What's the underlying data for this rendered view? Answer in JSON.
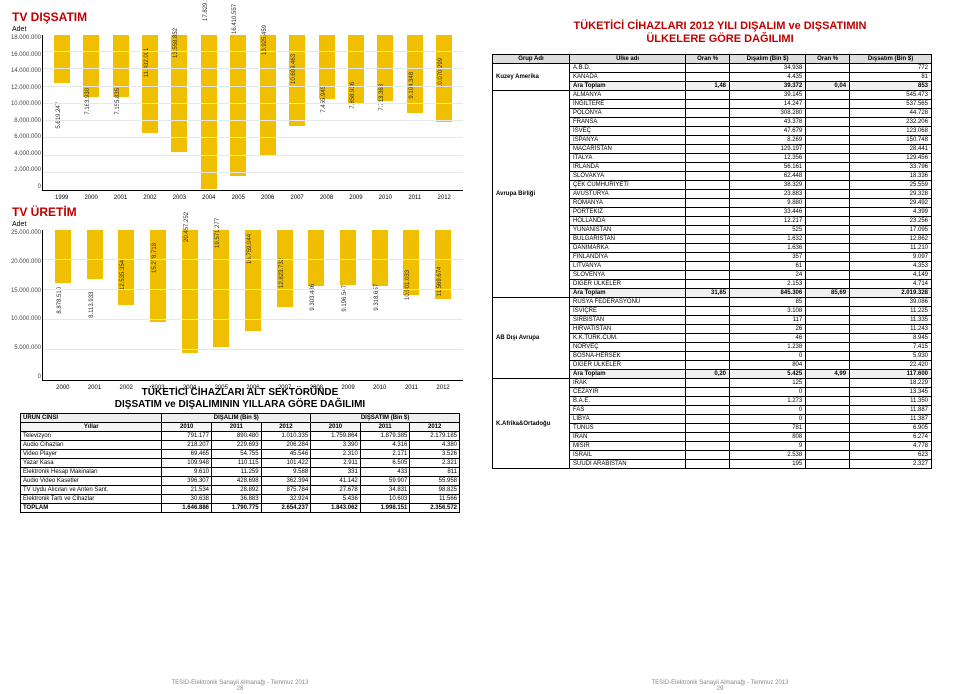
{
  "left": {
    "h1": "TV DIŞSATIM",
    "sub": "Adet",
    "chart1": {
      "type": "bar",
      "ymax": 18000000,
      "ytick": 2000000,
      "bar_color": "#f0c000",
      "grid_color": "#e8e8e8",
      "labels": [
        "1999",
        "2000",
        "2001",
        "2002",
        "2003",
        "2004",
        "2005",
        "2006",
        "2007",
        "2008",
        "2009",
        "2010",
        "2011",
        "2012"
      ],
      "values": [
        5619247,
        7163930,
        7155835,
        11432001,
        13558852,
        17829187,
        16410557,
        13925459,
        10609463,
        7455945,
        7858936,
        7713368,
        9104348,
        10070299
      ],
      "captions": [
        "5.619.247",
        "7.163.930",
        "7.155.835",
        "11.432.001",
        "13.558.852",
        "17.829.187",
        "16.410.557",
        "13.925.459",
        "10.609.463",
        "7.455.945",
        "7.858.936",
        "7.713.368",
        "9.104.348",
        "10.070.299"
      ]
    },
    "h2": "TV ÜRETİM",
    "chart2": {
      "type": "bar",
      "ymax": 25000000,
      "ytick": 5000000,
      "bar_color": "#f0c000",
      "grid_color": "#e8e8e8",
      "labels": [
        "2000",
        "2001",
        "2002",
        "2003",
        "2004",
        "2005",
        "2006",
        "2007",
        "2008",
        "2009",
        "2010",
        "2011",
        "2012"
      ],
      "values": [
        8878510,
        8113933,
        12535354,
        15278718,
        20457252,
        19571277,
        16759044,
        12823732,
        9303486,
        9196547,
        9318657,
        10901033,
        11569674
      ],
      "captions": [
        "8.878.510",
        "8.113.933",
        "12.535.354",
        "15.278.718",
        "20.457.252",
        "19.571.277",
        "16.759.044",
        "12.823.732",
        "9.303.486",
        "9.196.547",
        "9.318.657",
        "10.901.033",
        "11.569.674"
      ]
    },
    "tableTitle": "TÜKETİCİ CİHAZLARI ALT SEKTÖRÜNDE\nDIŞSATIM ve DIŞALIMININ YILLARA GÖRE DAĞILIMI",
    "table": {
      "head1": [
        "ÜRÜN CİNSİ",
        "DIŞALIM (Bin $)",
        "",
        "",
        "DIŞSATIM (Bin $)",
        "",
        ""
      ],
      "head2": [
        "Yıllar",
        "2010",
        "2011",
        "2012",
        "2010",
        "2011",
        "2012"
      ],
      "rows": [
        [
          "Televizyon",
          "791.177",
          "890.480",
          "1.010.335",
          "1.759.864",
          "1.879.385",
          "2.179.185"
        ],
        [
          "Audio Cihazları",
          "218.207",
          "229.693",
          "206.284",
          "3.390",
          "4.316",
          "4.380"
        ],
        [
          "Video Player",
          "69.465",
          "54.755",
          "45.546",
          "2.310",
          "2.171",
          "3.526"
        ],
        [
          "Yazar Kasa",
          "109.948",
          "110.115",
          "101.422",
          "2.911",
          "6.505",
          "2.321"
        ],
        [
          "Elektronik Hesap Makinaları",
          "9.610",
          "11.259",
          "9.588",
          "331",
          "433",
          "811"
        ],
        [
          "Audio Video Kasetler",
          "396.307",
          "428.698",
          "362.394",
          "41.142",
          "59.907",
          "55.958"
        ],
        [
          "TV Uydu Alıcıları ve Anten Sant.",
          "21.534",
          "28.892",
          "875.784",
          "27.678",
          "34.831",
          "98.825"
        ],
        [
          "Elektronik Tartı ve Cihazlar",
          "30.638",
          "36.883",
          "32.924",
          "5.436",
          "10.603",
          "11.566"
        ],
        [
          "TOPLAM",
          "1.646.886",
          "1.790.775",
          "2.654.237",
          "1.843.062",
          "1.998.151",
          "2.356.572"
        ]
      ]
    },
    "footer": "TESİD-Elektronik Sanayii Almanağı - Temmuz 2013",
    "pageNo": "28"
  },
  "right": {
    "title": "TÜKETİCİ CİHAZLARI 2012 YILI DIŞALIM ve DIŞSATIMIN\nÜLKELERE GÖRE DAĞILIMI",
    "columns": [
      "Grup Adı",
      "Ülke adı",
      "Oran %",
      "Dışalım (Bin $)",
      "Oran %",
      "Dışsatım (Bin $)"
    ],
    "groups": [
      {
        "name": "Kuzey Amerika",
        "rows": [
          [
            "A.B.D.",
            "",
            "34.938",
            "",
            "772"
          ],
          [
            "KANADA",
            "",
            "4.435",
            "",
            "81"
          ]
        ],
        "subtotal": [
          "Ara Toplam",
          "1,48",
          "39.372",
          "0,04",
          "853"
        ]
      },
      {
        "name": "Avrupa Birliği",
        "rows": [
          [
            "ALMANYA",
            "",
            "39.145",
            "",
            "545.473"
          ],
          [
            "İNGİLTERE",
            "",
            "14.247",
            "",
            "537.565"
          ],
          [
            "POLONYA",
            "",
            "308.280",
            "",
            "44.728"
          ],
          [
            "FRANSA",
            "",
            "43.378",
            "",
            "232.206"
          ],
          [
            "İSVEÇ",
            "",
            "47.679",
            "",
            "123.068"
          ],
          [
            "İSPANYA",
            "",
            "8.269",
            "",
            "150.748"
          ],
          [
            "MACARİSTAN",
            "",
            "129.197",
            "",
            "28.441"
          ],
          [
            "İTALYA",
            "",
            "12.356",
            "",
            "129.456"
          ],
          [
            "İRLANDA",
            "",
            "56.161",
            "",
            "33.796"
          ],
          [
            "SLOVAKYA",
            "",
            "62.448",
            "",
            "18.336"
          ],
          [
            "ÇEK CUMHURİYETİ",
            "",
            "38.329",
            "",
            "25.559"
          ],
          [
            "AVUSTURYA",
            "",
            "23.883",
            "",
            "29.328"
          ],
          [
            "ROMANYA",
            "",
            "9.880",
            "",
            "29.492"
          ],
          [
            "PORTEKİZ",
            "",
            "33.446",
            "",
            "4.399"
          ],
          [
            "HOLLANDA",
            "",
            "12.217",
            "",
            "23.256"
          ],
          [
            "YUNANİSTAN",
            "",
            "525",
            "",
            "17.095"
          ],
          [
            "BULGARİSTAN",
            "",
            "1.632",
            "",
            "12.862"
          ],
          [
            "DANİMARKA",
            "",
            "1.636",
            "",
            "11.210"
          ],
          [
            "FİNLANDİYA",
            "",
            "357",
            "",
            "9.097"
          ],
          [
            "LİTVANYA",
            "",
            "61",
            "",
            "4.353"
          ],
          [
            "SLOVENYA",
            "",
            "24",
            "",
            "4.149"
          ],
          [
            "DİĞER ÜLKELER",
            "",
            "2.153",
            "",
            "4.714"
          ]
        ],
        "subtotal": [
          "Ara Toplam",
          "31,85",
          "845.306",
          "85,69",
          "2.019.328"
        ]
      },
      {
        "name": "AB Dışı Avrupa",
        "rows": [
          [
            "RUSYA FEDERASYONU",
            "",
            "85",
            "",
            "39.086"
          ],
          [
            "İSVİÇRE",
            "",
            "3.108",
            "",
            "11.225"
          ],
          [
            "SIRBİSTAN",
            "",
            "117",
            "",
            "11.335"
          ],
          [
            "HIRVATİSTAN",
            "",
            "26",
            "",
            "11.243"
          ],
          [
            "K.K.TÜRK.CUM.",
            "",
            "46",
            "",
            "8.945"
          ],
          [
            "NORVEÇ",
            "",
            "1.238",
            "",
            "7.415"
          ],
          [
            "BOSNA-HERSEK",
            "",
            "0",
            "",
            "5.930"
          ],
          [
            "DİĞER ÜLKELER",
            "",
            "804",
            "",
            "22.420"
          ]
        ],
        "subtotal": [
          "Ara Toplam",
          "0,20",
          "5.425",
          "4,99",
          "117.600"
        ]
      },
      {
        "name": "K.Afrika&Ortadoğu",
        "rows": [
          [
            "IRAK",
            "",
            "125",
            "",
            "18.229"
          ],
          [
            "CEZAYİR",
            "",
            "0",
            "",
            "13.345"
          ],
          [
            "B.A.E.",
            "",
            "1.273",
            "",
            "11.350"
          ],
          [
            "FAS",
            "",
            "0",
            "",
            "11.887"
          ],
          [
            "LİBYA",
            "",
            "0",
            "",
            "11.387"
          ],
          [
            "TUNUS",
            "",
            "781",
            "",
            "6.905"
          ],
          [
            "İRAN",
            "",
            "808",
            "",
            "6.274"
          ],
          [
            "MISIR",
            "",
            "9",
            "",
            "4.778"
          ],
          [
            "İSRAİL",
            "",
            "2.538",
            "",
            "623"
          ],
          [
            "SUUDİ ARABİSTAN",
            "",
            "195",
            "",
            "2.327"
          ]
        ]
      }
    ],
    "footer": "TESİD-Elektronik Sanayii Almanağı - Temmuz 2013",
    "pageNo": "29"
  }
}
